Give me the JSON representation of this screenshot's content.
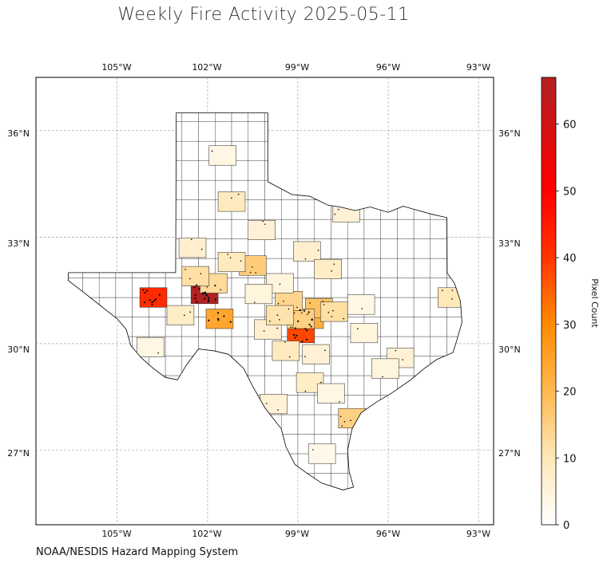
{
  "title": "Weekly Fire Activity 2025-05-11",
  "credit": "NOAA/NESDIS Hazard Mapping System",
  "lon_ticks": [
    "105°W",
    "102°W",
    "99°W",
    "96°W",
    "93°W"
  ],
  "lat_ticks": [
    "36°N",
    "33°N",
    "30°N",
    "27°N"
  ],
  "colorbar": {
    "label": "Pixel Count",
    "ticks": [
      "0",
      "10",
      "20",
      "30",
      "40",
      "50",
      "60"
    ],
    "range": [
      0,
      67
    ],
    "colors": [
      "#ffffff",
      "#ffe8b8",
      "#ffb84d",
      "#ff8a00",
      "#ff3300",
      "#ff0000",
      "#b22222"
    ]
  },
  "extent": {
    "lon": [
      -107.7,
      -92.5
    ],
    "lat": [
      24.9,
      37.5
    ]
  },
  "counties": [
    {
      "lon": -102.1,
      "lat": 31.4,
      "count": 67
    },
    {
      "lon": -103.8,
      "lat": 31.3,
      "count": 42
    },
    {
      "lon": -101.6,
      "lat": 30.7,
      "count": 24
    },
    {
      "lon": -98.9,
      "lat": 30.3,
      "count": 38
    },
    {
      "lon": -98.6,
      "lat": 30.7,
      "count": 22
    },
    {
      "lon": -98.3,
      "lat": 31.0,
      "count": 18
    },
    {
      "lon": -98.9,
      "lat": 30.7,
      "count": 15
    },
    {
      "lon": -99.3,
      "lat": 31.2,
      "count": 14
    },
    {
      "lon": -101.8,
      "lat": 31.7,
      "count": 13
    },
    {
      "lon": -100.5,
      "lat": 32.2,
      "count": 16
    },
    {
      "lon": -101.2,
      "lat": 32.3,
      "count": 9
    },
    {
      "lon": -102.4,
      "lat": 31.9,
      "count": 12
    },
    {
      "lon": -97.2,
      "lat": 27.9,
      "count": 15
    },
    {
      "lon": -93.9,
      "lat": 31.3,
      "count": 10
    },
    {
      "lon": -102.9,
      "lat": 30.8,
      "count": 8
    },
    {
      "lon": -102.5,
      "lat": 32.7,
      "count": 7
    },
    {
      "lon": -101.2,
      "lat": 34.0,
      "count": 9
    },
    {
      "lon": -100.2,
      "lat": 33.2,
      "count": 6
    },
    {
      "lon": -98.7,
      "lat": 32.6,
      "count": 7
    },
    {
      "lon": -98.0,
      "lat": 32.1,
      "count": 8
    },
    {
      "lon": -99.6,
      "lat": 31.7,
      "count": 5
    },
    {
      "lon": -98.4,
      "lat": 29.7,
      "count": 6
    },
    {
      "lon": -99.4,
      "lat": 29.8,
      "count": 9
    },
    {
      "lon": -99.8,
      "lat": 28.3,
      "count": 6
    },
    {
      "lon": -98.6,
      "lat": 28.9,
      "count": 8
    },
    {
      "lon": -97.4,
      "lat": 33.7,
      "count": 6
    },
    {
      "lon": -96.8,
      "lat": 30.3,
      "count": 5
    },
    {
      "lon": -95.6,
      "lat": 29.6,
      "count": 6
    },
    {
      "lon": -103.9,
      "lat": 29.9,
      "count": 4
    },
    {
      "lon": -100.0,
      "lat": 30.4,
      "count": 7
    },
    {
      "lon": -99.6,
      "lat": 30.8,
      "count": 11
    },
    {
      "lon": -100.3,
      "lat": 31.4,
      "count": 5
    },
    {
      "lon": -101.5,
      "lat": 35.3,
      "count": 4
    },
    {
      "lon": -97.8,
      "lat": 30.9,
      "count": 12
    },
    {
      "lon": -96.1,
      "lat": 29.3,
      "count": 5
    },
    {
      "lon": -98.2,
      "lat": 26.9,
      "count": 3
    },
    {
      "lon": -97.9,
      "lat": 28.6,
      "count": 4
    },
    {
      "lon": -96.9,
      "lat": 31.1,
      "count": 4
    }
  ]
}
